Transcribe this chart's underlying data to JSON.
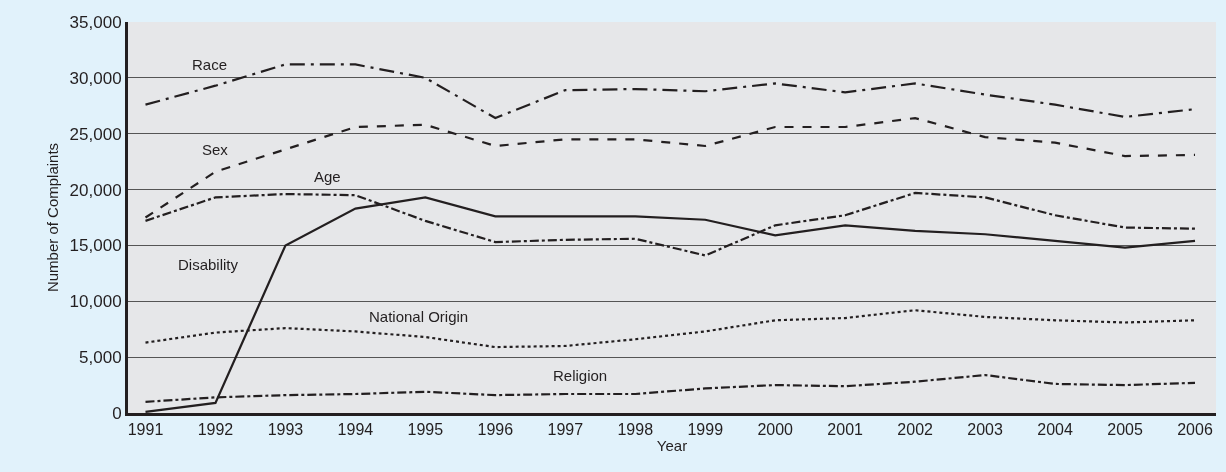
{
  "chart_data": {
    "type": "line",
    "xlabel": "Year",
    "ylabel": "Number of Complaints",
    "x": [
      1991,
      1992,
      1993,
      1994,
      1995,
      1996,
      1997,
      1998,
      1999,
      2000,
      2001,
      2002,
      2003,
      2004,
      2005,
      2006
    ],
    "series": [
      {
        "name": "Race",
        "color": "#231f20",
        "line_style": "longdashdot",
        "values": [
          27600,
          29300,
          31200,
          31200,
          30000,
          26400,
          28900,
          29000,
          28800,
          29500,
          28700,
          29500,
          28500,
          27600,
          26500,
          27200
        ]
      },
      {
        "name": "Sex",
        "color": "#231f20",
        "line_style": "dashed",
        "values": [
          17500,
          21600,
          23600,
          25600,
          25800,
          23900,
          24500,
          24500,
          23900,
          25600,
          25600,
          26400,
          24700,
          24200,
          23000,
          23100
        ]
      },
      {
        "name": "Age",
        "color": "#231f20",
        "line_style": "dashdot",
        "values": [
          17200,
          19300,
          19600,
          19500,
          17200,
          15300,
          15500,
          15600,
          14100,
          16800,
          17700,
          19700,
          19300,
          17700,
          16600,
          16500
        ]
      },
      {
        "name": "Disability",
        "color": "#231f20",
        "line_style": "solid",
        "values": [
          100,
          900,
          15000,
          18300,
          19300,
          17600,
          17600,
          17600,
          17300,
          15900,
          16800,
          16300,
          16000,
          15400,
          14800,
          15400
        ]
      },
      {
        "name": "National Origin",
        "color": "#231f20",
        "line_style": "dotted",
        "values": [
          6300,
          7200,
          7600,
          7300,
          6800,
          5900,
          6000,
          6600,
          7300,
          8300,
          8500,
          9200,
          8600,
          8300,
          8100,
          8300
        ]
      },
      {
        "name": "Religion",
        "color": "#231f20",
        "line_style": "dashdot",
        "values": [
          1000,
          1400,
          1600,
          1700,
          1900,
          1600,
          1700,
          1700,
          2200,
          2500,
          2400,
          2800,
          3400,
          2600,
          2500,
          2700
        ]
      }
    ],
    "xlim": [
      1990.75,
      2006.3
    ],
    "xticks": [
      1991,
      1992,
      1993,
      1994,
      1995,
      1996,
      1997,
      1998,
      1999,
      2000,
      2001,
      2002,
      2003,
      2004,
      2005,
      2006
    ],
    "ylim": [
      0,
      35000
    ],
    "yticks": [
      {
        "value": 0,
        "label": "0"
      },
      {
        "value": 5000,
        "label": "5,000"
      },
      {
        "value": 10000,
        "label": "10,000"
      },
      {
        "value": 15000,
        "label": "15,000"
      },
      {
        "value": 20000,
        "label": "20,000"
      },
      {
        "value": 25000,
        "label": "25,000"
      },
      {
        "value": 30000,
        "label": "30,000"
      },
      {
        "value": 35000,
        "label": "35,000"
      }
    ],
    "grid": "y",
    "legend": false
  }
}
